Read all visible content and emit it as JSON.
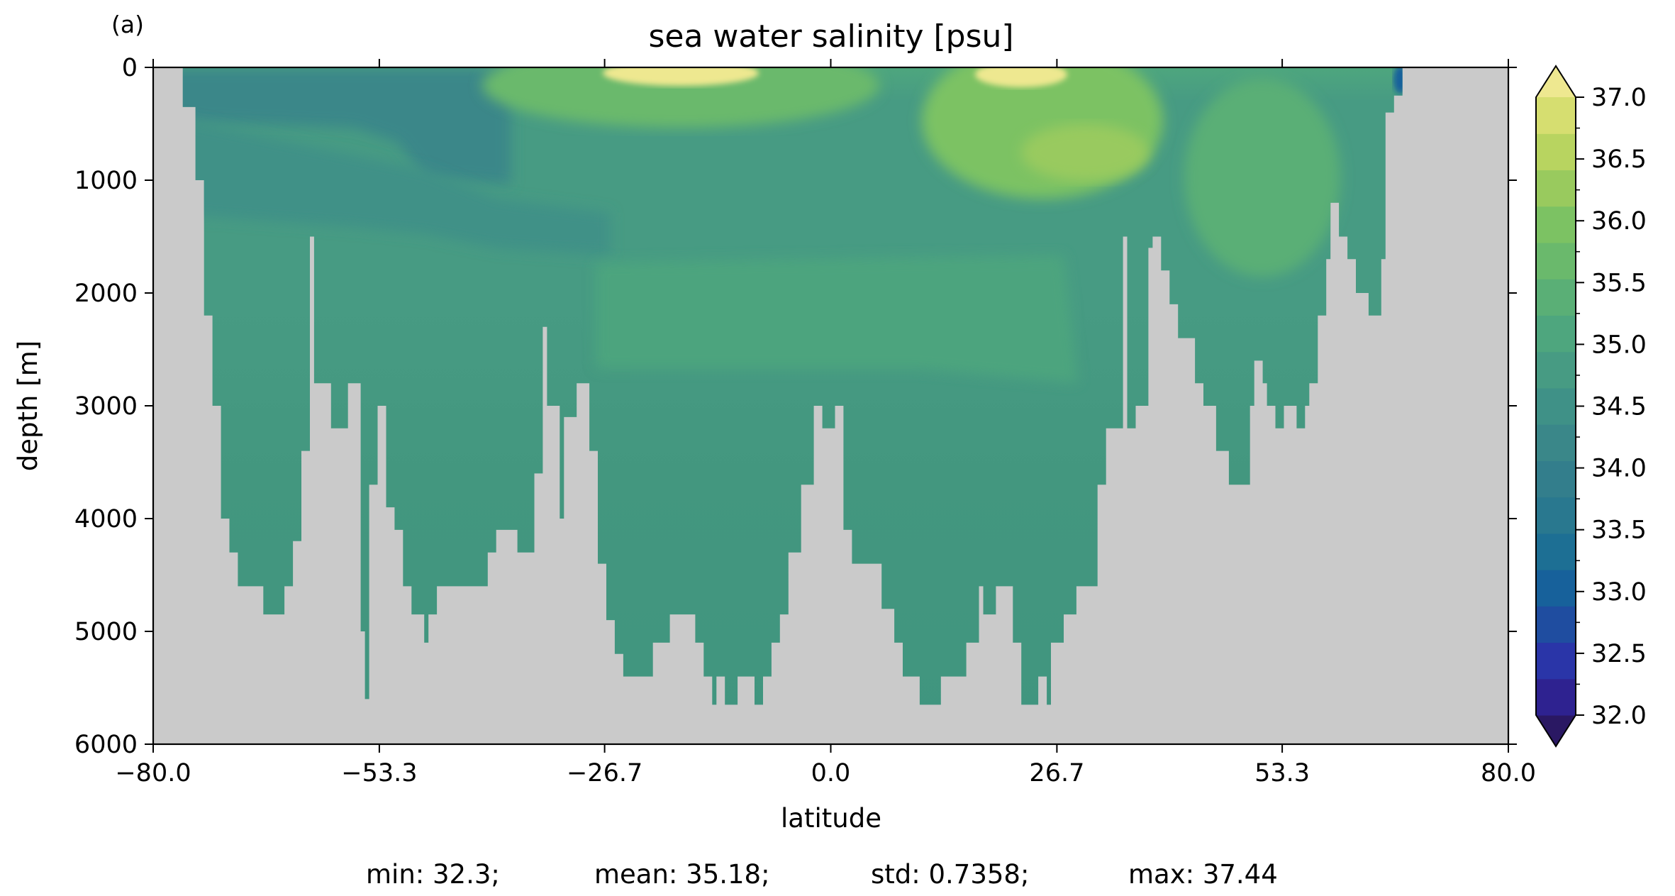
{
  "panel_label": "(a)",
  "colors": {
    "land": "#cacaca",
    "colormap": [
      "#2a1863",
      "#2e2290",
      "#2a35a8",
      "#1f4da0",
      "#17619b",
      "#1d6f94",
      "#29788f",
      "#337e8c",
      "#3a8789",
      "#3f9187",
      "#479b83",
      "#4ea67e",
      "#5aaf76",
      "#6ab96c",
      "#7cc263",
      "#99ca5e",
      "#b8d460",
      "#d6de70",
      "#eee890"
    ]
  },
  "chart_data": {
    "type": "heatmap",
    "title": "sea water salinity [psu]",
    "xlabel": "latitude",
    "ylabel": "depth [m]",
    "xlim": [
      -80.0,
      80.0
    ],
    "ylim": [
      6000,
      0
    ],
    "xticks": [
      "-80.0",
      "-53.3",
      "-26.7",
      "0.0",
      "26.7",
      "53.3",
      "80.0"
    ],
    "xtick_values": [
      -80.0,
      -53.3,
      -26.7,
      0.0,
      26.7,
      53.3,
      80.0
    ],
    "yticks": [
      "0",
      "1000",
      "2000",
      "3000",
      "4000",
      "5000",
      "6000"
    ],
    "ytick_values": [
      0,
      1000,
      2000,
      3000,
      4000,
      5000,
      6000
    ],
    "colorbar": {
      "ticks": [
        "32.0",
        "32.5",
        "33.0",
        "33.5",
        "34.0",
        "34.5",
        "35.0",
        "35.5",
        "36.0",
        "36.5",
        "37.0"
      ],
      "min": 32.0,
      "max": 37.0,
      "extend": "both",
      "placement": "right"
    },
    "bottom_profile": [
      [
        -80,
        0
      ],
      [
        -76.5,
        0
      ],
      [
        -76.5,
        350
      ],
      [
        -75,
        350
      ],
      [
        -75,
        1000
      ],
      [
        -74,
        1000
      ],
      [
        -74,
        2200
      ],
      [
        -73,
        2200
      ],
      [
        -73,
        3000
      ],
      [
        -72,
        3000
      ],
      [
        -72,
        4000
      ],
      [
        -71,
        4000
      ],
      [
        -71,
        4300
      ],
      [
        -70,
        4300
      ],
      [
        -70,
        4600
      ],
      [
        -67,
        4600
      ],
      [
        -67,
        4850
      ],
      [
        -64.5,
        4850
      ],
      [
        -64.5,
        4600
      ],
      [
        -63.5,
        4600
      ],
      [
        -63.5,
        4200
      ],
      [
        -62.5,
        4200
      ],
      [
        -62.5,
        3400
      ],
      [
        -61.5,
        3400
      ],
      [
        -61.5,
        1500
      ],
      [
        -61,
        1500
      ],
      [
        -61,
        2800
      ],
      [
        -59,
        2800
      ],
      [
        -59,
        3200
      ],
      [
        -57,
        3200
      ],
      [
        -57,
        2800
      ],
      [
        -55.5,
        2800
      ],
      [
        -55.5,
        5000
      ],
      [
        -55,
        5000
      ],
      [
        -55,
        5600
      ],
      [
        -54.5,
        5600
      ],
      [
        -54.5,
        3700
      ],
      [
        -53.5,
        3700
      ],
      [
        -53.5,
        3000
      ],
      [
        -52.5,
        3000
      ],
      [
        -52.5,
        3900
      ],
      [
        -51.5,
        3900
      ],
      [
        -51.5,
        4100
      ],
      [
        -50.5,
        4100
      ],
      [
        -50.5,
        4600
      ],
      [
        -49.5,
        4600
      ],
      [
        -49.5,
        4850
      ],
      [
        -48,
        4850
      ],
      [
        -48,
        5100
      ],
      [
        -47.5,
        5100
      ],
      [
        -47.5,
        4850
      ],
      [
        -46.5,
        4850
      ],
      [
        -46.5,
        4600
      ],
      [
        -40.5,
        4600
      ],
      [
        -40.5,
        4300
      ],
      [
        -39.5,
        4300
      ],
      [
        -39.5,
        4100
      ],
      [
        -37,
        4100
      ],
      [
        -37,
        4300
      ],
      [
        -35,
        4300
      ],
      [
        -35,
        3600
      ],
      [
        -34,
        3600
      ],
      [
        -34,
        2300
      ],
      [
        -33.5,
        2300
      ],
      [
        -33.5,
        3000
      ],
      [
        -32,
        3000
      ],
      [
        -32,
        4000
      ],
      [
        -31.5,
        4000
      ],
      [
        -31.5,
        3100
      ],
      [
        -30,
        3100
      ],
      [
        -30,
        2800
      ],
      [
        -28.5,
        2800
      ],
      [
        -28.5,
        3400
      ],
      [
        -27.5,
        3400
      ],
      [
        -27.5,
        4400
      ],
      [
        -26.5,
        4400
      ],
      [
        -26.5,
        4900
      ],
      [
        -25.5,
        4900
      ],
      [
        -25.5,
        5200
      ],
      [
        -24.5,
        5200
      ],
      [
        -24.5,
        5400
      ],
      [
        -21,
        5400
      ],
      [
        -21,
        5100
      ],
      [
        -19,
        5100
      ],
      [
        -19,
        4850
      ],
      [
        -16,
        4850
      ],
      [
        -16,
        5100
      ],
      [
        -15,
        5100
      ],
      [
        -15,
        5400
      ],
      [
        -14,
        5400
      ],
      [
        -14,
        5650
      ],
      [
        -13.5,
        5650
      ],
      [
        -13.5,
        5400
      ],
      [
        -12.5,
        5400
      ],
      [
        -12.5,
        5650
      ],
      [
        -11,
        5650
      ],
      [
        -11,
        5400
      ],
      [
        -9,
        5400
      ],
      [
        -9,
        5650
      ],
      [
        -8,
        5650
      ],
      [
        -8,
        5400
      ],
      [
        -7,
        5400
      ],
      [
        -7,
        5100
      ],
      [
        -6,
        5100
      ],
      [
        -6,
        4850
      ],
      [
        -5,
        4850
      ],
      [
        -5,
        4300
      ],
      [
        -3.5,
        4300
      ],
      [
        -3.5,
        3700
      ],
      [
        -2,
        3700
      ],
      [
        -2,
        3000
      ],
      [
        -1,
        3000
      ],
      [
        -1,
        3200
      ],
      [
        0.5,
        3200
      ],
      [
        0.5,
        3000
      ],
      [
        1.5,
        3000
      ],
      [
        1.5,
        4100
      ],
      [
        2.5,
        4100
      ],
      [
        2.5,
        4400
      ],
      [
        6,
        4400
      ],
      [
        6,
        4800
      ],
      [
        7.5,
        4800
      ],
      [
        7.5,
        5100
      ],
      [
        8.5,
        5100
      ],
      [
        8.5,
        5400
      ],
      [
        10.5,
        5400
      ],
      [
        10.5,
        5650
      ],
      [
        13,
        5650
      ],
      [
        13,
        5400
      ],
      [
        16,
        5400
      ],
      [
        16,
        5100
      ],
      [
        17.5,
        5100
      ],
      [
        17.5,
        4600
      ],
      [
        18,
        4600
      ],
      [
        18,
        4850
      ],
      [
        19.5,
        4850
      ],
      [
        19.5,
        4600
      ],
      [
        21.5,
        4600
      ],
      [
        21.5,
        5100
      ],
      [
        22.5,
        5100
      ],
      [
        22.5,
        5650
      ],
      [
        24.5,
        5650
      ],
      [
        24.5,
        5400
      ],
      [
        25.5,
        5400
      ],
      [
        25.5,
        5650
      ],
      [
        26,
        5650
      ],
      [
        26,
        5100
      ],
      [
        27.5,
        5100
      ],
      [
        27.5,
        4850
      ],
      [
        29,
        4850
      ],
      [
        29,
        4600
      ],
      [
        31.5,
        4600
      ],
      [
        31.5,
        3700
      ],
      [
        32.5,
        3700
      ],
      [
        32.5,
        3200
      ],
      [
        34.5,
        3200
      ],
      [
        34.5,
        1500
      ],
      [
        35,
        1500
      ],
      [
        35,
        3200
      ],
      [
        36,
        3200
      ],
      [
        36,
        3000
      ],
      [
        37.5,
        3000
      ],
      [
        37.5,
        1600
      ],
      [
        38,
        1600
      ],
      [
        38,
        1500
      ],
      [
        39,
        1500
      ],
      [
        39,
        1800
      ],
      [
        40,
        1800
      ],
      [
        40,
        2100
      ],
      [
        41,
        2100
      ],
      [
        41,
        2400
      ],
      [
        43,
        2400
      ],
      [
        43,
        2800
      ],
      [
        44,
        2800
      ],
      [
        44,
        3000
      ],
      [
        45.5,
        3000
      ],
      [
        45.5,
        3400
      ],
      [
        47,
        3400
      ],
      [
        47,
        3700
      ],
      [
        49.5,
        3700
      ],
      [
        49.5,
        3000
      ],
      [
        50,
        3000
      ],
      [
        50,
        2600
      ],
      [
        51,
        2600
      ],
      [
        51,
        2800
      ],
      [
        51.5,
        2800
      ],
      [
        51.5,
        3000
      ],
      [
        52.5,
        3000
      ],
      [
        52.5,
        3200
      ],
      [
        53.5,
        3200
      ],
      [
        53.5,
        3000
      ],
      [
        55,
        3000
      ],
      [
        55,
        3200
      ],
      [
        56,
        3200
      ],
      [
        56,
        3000
      ],
      [
        56.5,
        3000
      ],
      [
        56.5,
        2800
      ],
      [
        57.5,
        2800
      ],
      [
        57.5,
        2200
      ],
      [
        58.5,
        2200
      ],
      [
        58.5,
        1700
      ],
      [
        59,
        1700
      ],
      [
        59,
        1200
      ],
      [
        60,
        1200
      ],
      [
        60,
        1500
      ],
      [
        61,
        1500
      ],
      [
        61,
        1700
      ],
      [
        62,
        1700
      ],
      [
        62,
        2000
      ],
      [
        63.5,
        2000
      ],
      [
        63.5,
        2200
      ],
      [
        65,
        2200
      ],
      [
        65,
        1700
      ],
      [
        65.5,
        1700
      ],
      [
        65.5,
        400
      ],
      [
        66.5,
        400
      ],
      [
        66.5,
        250
      ],
      [
        67.5,
        250
      ],
      [
        67.5,
        0
      ],
      [
        80,
        0
      ]
    ]
  },
  "stats": {
    "min": "min: 32.3;",
    "mean": "mean: 35.18;",
    "std": "std: 0.7358;",
    "max": "max: 37.44"
  }
}
